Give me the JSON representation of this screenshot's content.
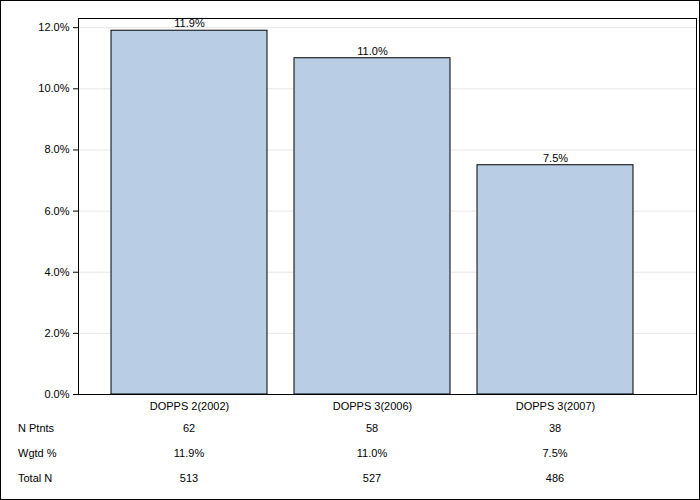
{
  "chart_data": {
    "type": "bar",
    "categories": [
      "DOPPS 2(2002)",
      "DOPPS 3(2006)",
      "DOPPS 3(2007)"
    ],
    "values": [
      11.9,
      11.0,
      7.5
    ],
    "value_labels": [
      "11.9%",
      "11.0%",
      "7.5%"
    ],
    "data_labels": true,
    "color": "#b9cde5",
    "ylim": [
      0,
      12.3
    ],
    "yticks": [
      {
        "value": 0,
        "label": "0.0%"
      },
      {
        "value": 2,
        "label": "2.0%"
      },
      {
        "value": 4,
        "label": "4.0%"
      },
      {
        "value": 6,
        "label": "6.0%"
      },
      {
        "value": 8,
        "label": "8.0%"
      },
      {
        "value": 10,
        "label": "10.0%"
      },
      {
        "value": 12,
        "label": "12.0%"
      }
    ],
    "grid": true,
    "table": [
      {
        "label": "N Ptnts",
        "cells": [
          "62",
          "58",
          "38"
        ]
      },
      {
        "label": "Wgtd %",
        "cells": [
          "11.9%",
          "11.0%",
          "7.5%"
        ]
      },
      {
        "label": "Total N",
        "cells": [
          "513",
          "527",
          "486"
        ]
      }
    ]
  }
}
